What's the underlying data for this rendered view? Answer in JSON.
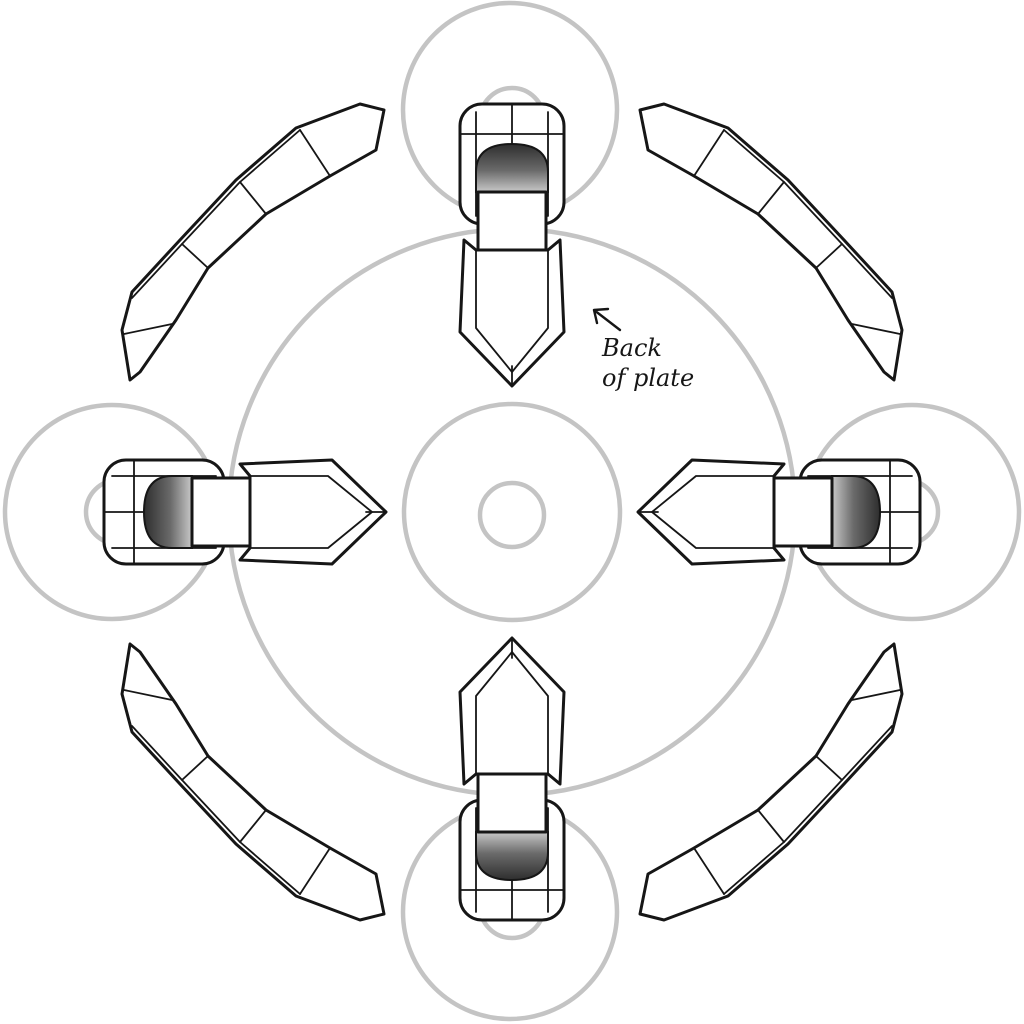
{
  "annotation": {
    "line1": "Back",
    "line2": "of plate"
  },
  "colors": {
    "ink": "#161616",
    "guide_circles": "#c4c4c4",
    "pad_dark": "#3a3a3a",
    "background": "#ffffff"
  },
  "icons": {
    "annotation_arrow": "arrow-up-left-icon"
  }
}
